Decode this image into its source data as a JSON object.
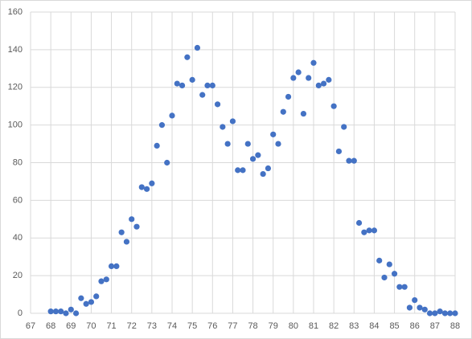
{
  "chart_data": {
    "type": "scatter",
    "x": [
      68,
      68.25,
      68.5,
      68.75,
      69,
      69.25,
      69.5,
      69.75,
      70,
      70.25,
      70.5,
      70.75,
      71,
      71.25,
      71.5,
      71.75,
      72,
      72.25,
      72.5,
      72.75,
      73,
      73.25,
      73.5,
      73.75,
      74,
      74.25,
      74.5,
      74.75,
      75,
      75.25,
      75.5,
      75.75,
      76,
      76.25,
      76.5,
      76.75,
      77,
      77.25,
      77.5,
      77.75,
      78,
      78.25,
      78.5,
      78.75,
      79,
      79.25,
      79.5,
      79.75,
      80,
      80.25,
      80.5,
      80.75,
      81,
      81.25,
      81.5,
      81.75,
      82,
      82.25,
      82.5,
      82.75,
      83,
      83.25,
      83.5,
      83.75,
      84,
      84.25,
      84.5,
      84.75,
      85,
      85.25,
      85.5,
      85.75,
      86,
      86.25,
      86.5,
      86.75,
      87,
      87.25,
      87.5,
      87.75,
      88
    ],
    "values": [
      1,
      1,
      1,
      0,
      2,
      0,
      8,
      5,
      6,
      9,
      17,
      18,
      25,
      25,
      43,
      38,
      50,
      46,
      67,
      66,
      69,
      89,
      100,
      80,
      105,
      122,
      121,
      136,
      124,
      141,
      116,
      121,
      121,
      111,
      99,
      90,
      102,
      76,
      76,
      90,
      82,
      84,
      74,
      77,
      95,
      90,
      107,
      115,
      125,
      128,
      106,
      125,
      133,
      121,
      122,
      124,
      110,
      86,
      99,
      81,
      81,
      48,
      43,
      44,
      44,
      28,
      19,
      26,
      21,
      14,
      14,
      3,
      7,
      3,
      2,
      0,
      0,
      1,
      0,
      0,
      0
    ],
    "color": "#4472c4",
    "xlim": [
      67,
      88
    ],
    "xticks": [
      67,
      68,
      69,
      70,
      71,
      72,
      73,
      74,
      75,
      76,
      77,
      78,
      79,
      80,
      81,
      82,
      83,
      84,
      85,
      86,
      87,
      88
    ],
    "ylim": [
      0,
      160
    ],
    "yticks": [
      0,
      20,
      40,
      60,
      80,
      100,
      120,
      140,
      160
    ],
    "grid": true
  }
}
